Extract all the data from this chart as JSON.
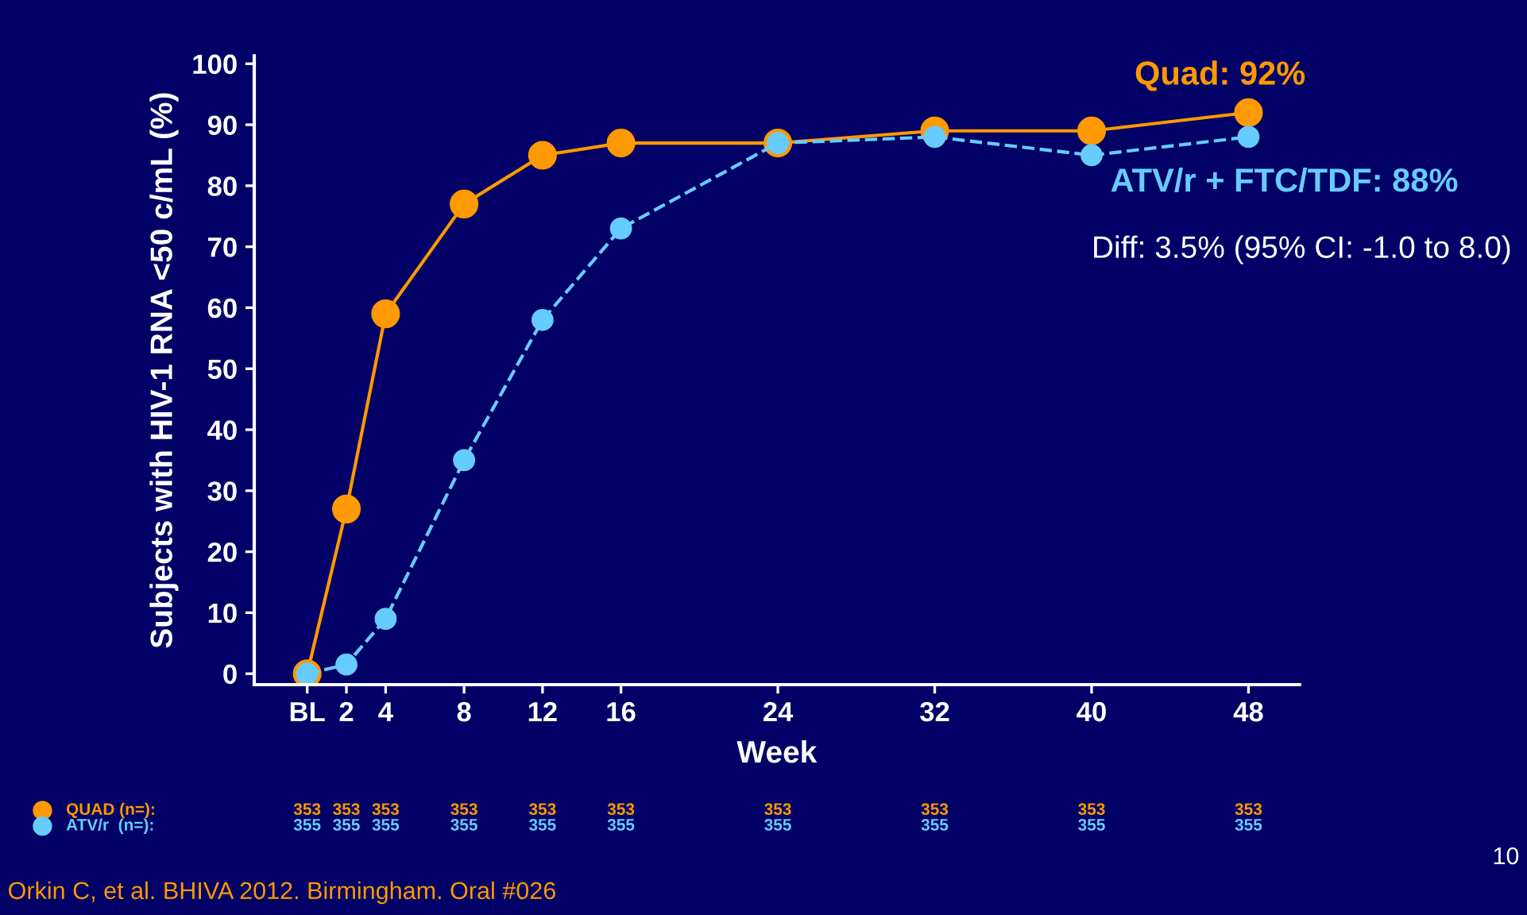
{
  "chart_data": {
    "type": "line",
    "xlabel": "Week",
    "ylabel": "Subjects with HIV-1 RNA <50 c/mL (%)",
    "x": [
      0,
      2,
      4,
      8,
      12,
      16,
      24,
      32,
      40,
      48
    ],
    "series": [
      {
        "name": "Quad: 92%",
        "color": "#ff9900",
        "line_style": "solid",
        "values": [
          0,
          27,
          59,
          77,
          85,
          87,
          87,
          89,
          89,
          92
        ]
      },
      {
        "name": "ATV/r + FTC/TDF: 88%",
        "color": "#66ccff",
        "line_style": "dashed",
        "values": [
          0,
          1.5,
          9,
          35,
          58,
          73,
          87,
          88,
          85,
          88
        ]
      }
    ],
    "marker": "circle",
    "xlim": [
      -2.7,
      50.6
    ],
    "ylim": [
      -1.8,
      101.3
    ],
    "xticks": [
      {
        "value": 0,
        "label": "BL"
      },
      2,
      4,
      8,
      12,
      16,
      24,
      32,
      40,
      48
    ],
    "yticks": [
      0,
      10,
      20,
      30,
      40,
      50,
      60,
      70,
      80,
      90,
      100
    ],
    "grid": false,
    "legend": false,
    "annotations": [
      "QUAD (n=):",
      "353",
      "353",
      "353",
      "353",
      "353",
      "353",
      "353",
      "353",
      "353",
      "353",
      "ATV/r  (n=):",
      "355",
      "355",
      "355",
      "355",
      "355",
      "355",
      "355",
      "355",
      "355",
      "355",
      "Diff: 3.5% (95% CI: -1.0 to 8.0)",
      "Orkin C, et al. BHIVA 2012. Birmingham. Oral #026",
      "10"
    ]
  }
}
